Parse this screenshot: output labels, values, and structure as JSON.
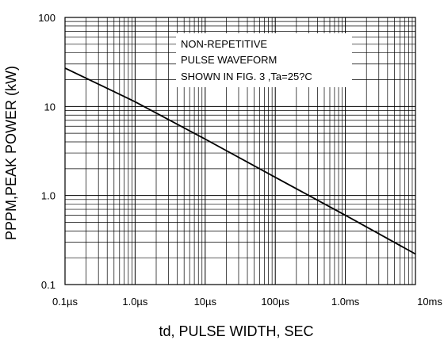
{
  "chart_data": {
    "type": "line",
    "x_scale": "log",
    "y_scale": "log",
    "xlim": [
      1e-07,
      0.01
    ],
    "ylim": [
      0.1,
      100
    ],
    "grid": true,
    "x_tick_labels": [
      "0.1µs",
      "1.0µs",
      "10µs",
      "100µs",
      "1.0ms",
      "10ms"
    ],
    "y_tick_labels": [
      "0.1",
      "1.0",
      "10",
      "100"
    ],
    "xlabel": "td, PULSE WIDTH, SEC",
    "ylabel": "PPPM,PEAK POWER (kW)",
    "annotation": [
      "NON-REPETITIVE",
      "PULSE WAVEFORM",
      "SHOWN IN FIG. 3 ,Ta=25?C"
    ],
    "series": [
      {
        "x": [
          1e-07,
          1e-06,
          1e-05,
          0.0001,
          0.001,
          0.01
        ],
        "y": [
          27,
          11.3,
          4.3,
          1.6,
          0.6,
          0.22
        ]
      }
    ]
  }
}
